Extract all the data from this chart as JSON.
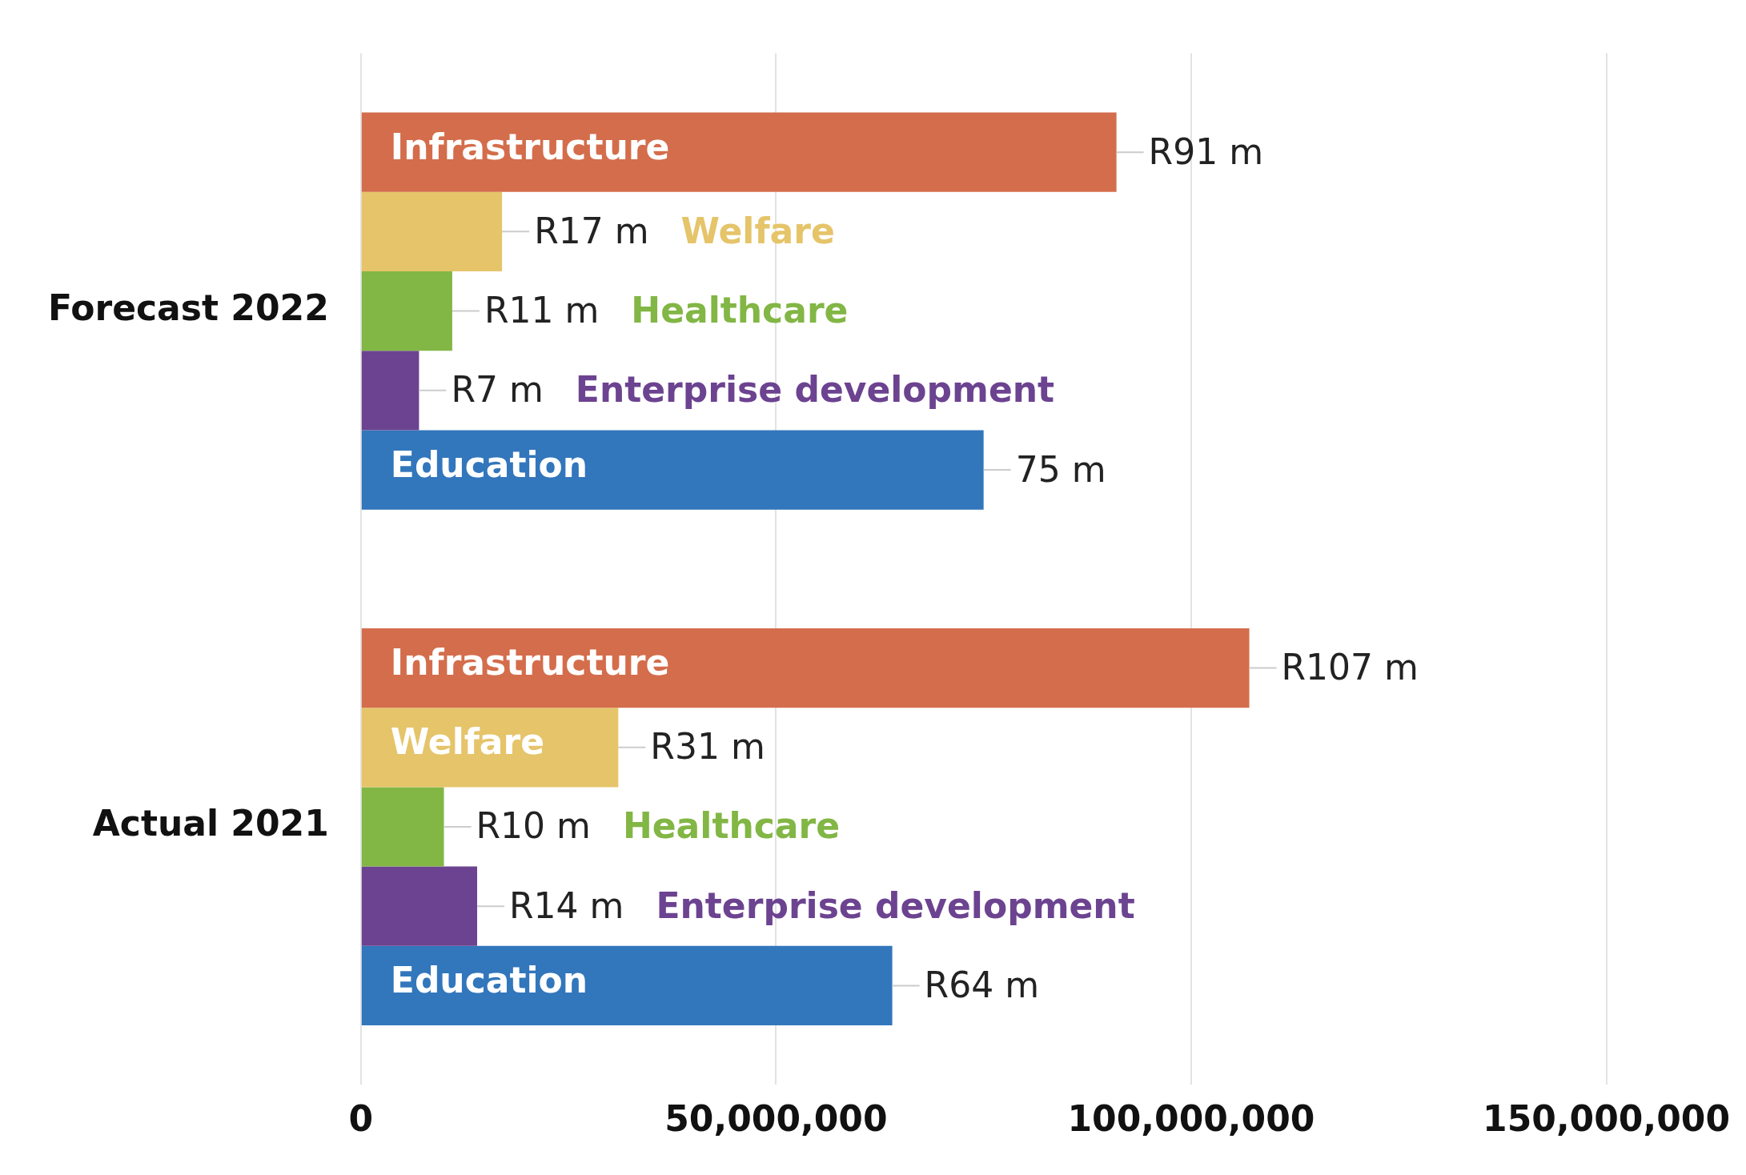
{
  "chart_data": {
    "type": "bar",
    "orientation": "horizontal",
    "categories": [
      "Forecast 2022",
      "Actual 2021"
    ],
    "series": [
      {
        "name": "Infrastructure",
        "color": "#d46d4b",
        "values": [
          91000000,
          107000000
        ],
        "value_labels": [
          "R91 m",
          "R107 m"
        ]
      },
      {
        "name": "Welfare",
        "color": "#e5c46a",
        "values": [
          17000000,
          31000000
        ],
        "value_labels": [
          "R17 m",
          "R31 m"
        ]
      },
      {
        "name": "Healthcare",
        "color": "#82b645",
        "values": [
          11000000,
          10000000
        ],
        "value_labels": [
          "R11 m",
          "R10 m"
        ]
      },
      {
        "name": "Enterprise development",
        "color": "#6c4390",
        "values": [
          7000000,
          14000000
        ],
        "value_labels": [
          "R7 m",
          "R14 m"
        ]
      },
      {
        "name": "Education",
        "color": "#3276bc",
        "values": [
          75000000,
          64000000
        ],
        "value_labels": [
          "75 m",
          "R64 m"
        ]
      }
    ],
    "xlim": [
      0,
      150000000
    ],
    "xticks": [
      0,
      {
        "value": 50000000,
        "label": "50,000,000"
      },
      {
        "value": 100000000,
        "label": "100,000,000"
      },
      {
        "value": 150000000,
        "label": "150,000,000"
      }
    ],
    "grid": "x",
    "legend": false
  }
}
